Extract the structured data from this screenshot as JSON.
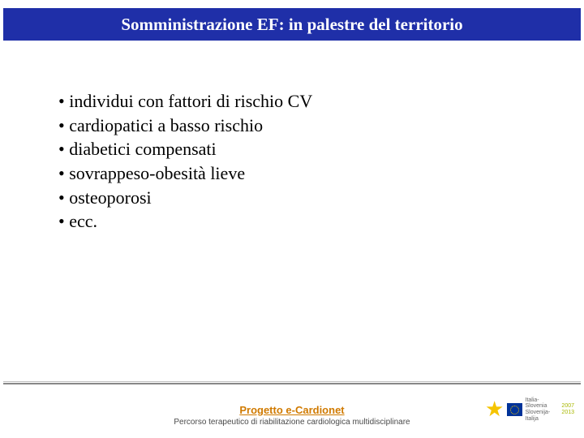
{
  "title": "Somministrazione EF: in palestre del territorio",
  "bullets": [
    "individui con fattori di rischio CV",
    "cardiopatici a basso rischio",
    "diabetici compensati",
    "sovrappeso-obesità lieve",
    "osteoporosi",
    "ecc."
  ],
  "footer": {
    "title": "Progetto e-Cardionet",
    "subtitle": "Percorso terapeutico di riabilitazione cardiologica multidisciplinare"
  },
  "logo": {
    "line1": "Italia-Slovenia",
    "line2": "Slovenija-Italija",
    "year1": "2007",
    "year2": "2013"
  },
  "colors": {
    "title_bar": "#1f2fa8",
    "title_text": "#ffffff",
    "body_text": "#000000",
    "footer_title": "#d07a00",
    "footer_sub": "#4a4a4a",
    "background": "#ffffff"
  }
}
